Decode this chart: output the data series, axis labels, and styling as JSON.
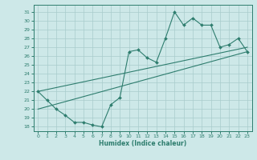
{
  "xlabel": "Humidex (Indice chaleur)",
  "bg_color": "#cde8e8",
  "line_color": "#2e7d6e",
  "grid_color": "#a8cccc",
  "xlim": [
    -0.5,
    23.5
  ],
  "ylim": [
    17.5,
    31.8
  ],
  "yticks": [
    18,
    19,
    20,
    21,
    22,
    23,
    24,
    25,
    26,
    27,
    28,
    29,
    30,
    31
  ],
  "xticks": [
    0,
    1,
    2,
    3,
    4,
    5,
    6,
    7,
    8,
    9,
    10,
    11,
    12,
    13,
    14,
    15,
    16,
    17,
    18,
    19,
    20,
    21,
    22,
    23
  ],
  "line1_x": [
    0,
    1,
    2,
    3,
    4,
    5,
    6,
    7,
    8,
    9,
    10,
    11,
    12,
    13,
    14,
    15,
    16,
    17,
    18,
    19,
    20,
    21,
    22,
    23
  ],
  "line1_y": [
    22.0,
    21.0,
    20.0,
    19.3,
    18.5,
    18.5,
    18.2,
    18.0,
    20.5,
    21.3,
    26.5,
    26.7,
    25.8,
    25.3,
    28.0,
    31.0,
    29.5,
    30.3,
    29.5,
    29.5,
    27.0,
    27.3,
    28.0,
    26.5
  ],
  "line2_x": [
    0,
    23
  ],
  "line2_y": [
    20.0,
    26.5
  ],
  "line3_x": [
    0,
    23
  ],
  "line3_y": [
    22.0,
    27.0
  ]
}
